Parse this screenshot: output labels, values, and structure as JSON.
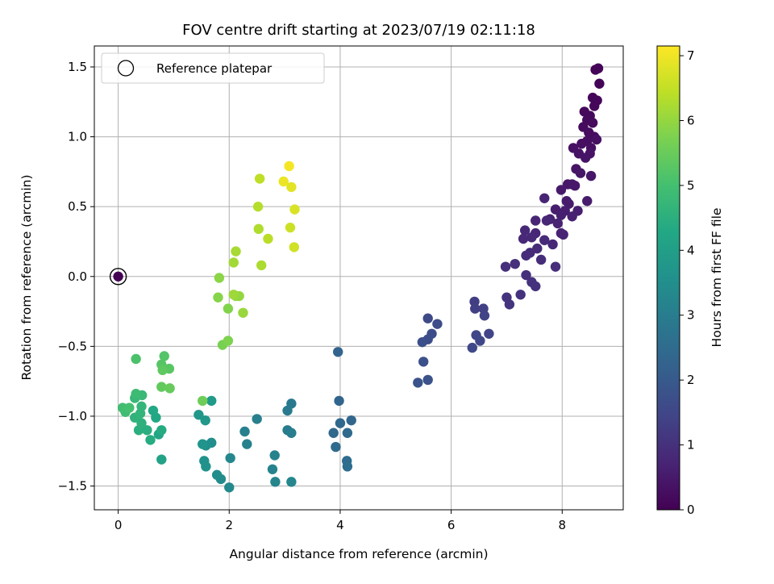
{
  "chart_data": {
    "type": "scatter",
    "title": "FOV centre drift starting at 2023/07/19 02:11:18",
    "xlabel": "Angular distance from reference (arcmin)",
    "ylabel": "Rotation from reference (arcmin)",
    "xlim": [
      -0.43,
      9.1
    ],
    "ylim": [
      -1.67,
      1.65
    ],
    "xticks": [
      0,
      2,
      4,
      6,
      8
    ],
    "xtick_labels": [
      "0",
      "2",
      "4",
      "6",
      "8"
    ],
    "yticks": [
      -1.5,
      -1.0,
      -0.5,
      0.0,
      0.5,
      1.0,
      1.5
    ],
    "ytick_labels": [
      "−1.5",
      "−1.0",
      "−0.5",
      "0.0",
      "0.5",
      "1.0",
      "1.5"
    ],
    "grid": true,
    "colormap": "viridis",
    "legend": {
      "placement": "upper-left",
      "entries": [
        {
          "label": "Reference platepar",
          "marker": "hollow-circle"
        }
      ]
    },
    "colorbar": {
      "label": "Hours from first FF file",
      "range": [
        0,
        7.15
      ],
      "ticks": [
        0,
        1,
        2,
        3,
        4,
        5,
        6,
        7
      ],
      "tick_labels": [
        "0",
        "1",
        "2",
        "3",
        "4",
        "5",
        "6",
        "7"
      ]
    },
    "reference_point": {
      "x": 0,
      "y": 0
    },
    "points": [
      [
        0,
        0,
        0
      ],
      [
        8.6,
        1.48,
        0.05
      ],
      [
        8.65,
        1.49,
        0.07
      ],
      [
        8.67,
        1.38,
        0.08
      ],
      [
        8.55,
        1.28,
        0.1
      ],
      [
        8.63,
        1.26,
        0.12
      ],
      [
        8.58,
        1.22,
        0.13
      ],
      [
        8.4,
        1.18,
        0.15
      ],
      [
        8.5,
        1.15,
        0.17
      ],
      [
        8.45,
        1.12,
        0.18
      ],
      [
        8.55,
        1.1,
        0.2
      ],
      [
        8.38,
        1.07,
        0.22
      ],
      [
        8.48,
        1.03,
        0.23
      ],
      [
        8.58,
        1.0,
        0.25
      ],
      [
        8.45,
        0.97,
        0.27
      ],
      [
        8.35,
        0.95,
        0.28
      ],
      [
        8.52,
        0.92,
        0.3
      ],
      [
        8.62,
        0.98,
        0.32
      ],
      [
        8.2,
        0.92,
        0.33
      ],
      [
        8.3,
        0.88,
        0.35
      ],
      [
        8.5,
        0.88,
        0.37
      ],
      [
        8.42,
        0.85,
        0.38
      ],
      [
        8.25,
        0.77,
        0.4
      ],
      [
        8.33,
        0.74,
        0.42
      ],
      [
        8.52,
        0.72,
        0.43
      ],
      [
        8.1,
        0.66,
        0.45
      ],
      [
        8.18,
        0.66,
        0.47
      ],
      [
        8.23,
        0.65,
        0.48
      ],
      [
        7.98,
        0.62,
        0.5
      ],
      [
        8.08,
        0.54,
        0.52
      ],
      [
        8.12,
        0.52,
        0.53
      ],
      [
        8.45,
        0.54,
        0.55
      ],
      [
        7.88,
        0.48,
        0.57
      ],
      [
        8.05,
        0.47,
        0.58
      ],
      [
        8.28,
        0.47,
        0.6
      ],
      [
        7.98,
        0.44,
        0.62
      ],
      [
        8.18,
        0.43,
        0.63
      ],
      [
        7.78,
        0.41,
        0.65
      ],
      [
        7.92,
        0.38,
        0.67
      ],
      [
        7.98,
        0.31,
        0.68
      ],
      [
        8.02,
        0.3,
        0.7
      ],
      [
        7.68,
        0.56,
        0.72
      ],
      [
        7.52,
        0.4,
        0.73
      ],
      [
        7.72,
        0.4,
        0.75
      ],
      [
        7.52,
        0.31,
        0.77
      ],
      [
        7.83,
        0.23,
        0.78
      ],
      [
        7.33,
        0.33,
        0.8
      ],
      [
        7.3,
        0.27,
        0.82
      ],
      [
        7.45,
        0.28,
        0.83
      ],
      [
        7.68,
        0.26,
        0.85
      ],
      [
        7.55,
        0.2,
        0.87
      ],
      [
        7.42,
        0.17,
        0.88
      ],
      [
        7.35,
        0.15,
        0.9
      ],
      [
        7.62,
        0.12,
        0.92
      ],
      [
        7.88,
        0.07,
        0.93
      ],
      [
        7.15,
        0.09,
        0.95
      ],
      [
        6.98,
        0.07,
        0.97
      ],
      [
        7.35,
        0.01,
        0.98
      ],
      [
        7.45,
        -0.04,
        1.0
      ],
      [
        7.52,
        -0.07,
        1.02
      ],
      [
        7.25,
        -0.13,
        1.03
      ],
      [
        7.0,
        -0.15,
        1.05
      ],
      [
        7.05,
        -0.2,
        1.07
      ],
      [
        6.42,
        -0.18,
        1.3
      ],
      [
        6.43,
        -0.23,
        1.33
      ],
      [
        6.58,
        -0.23,
        1.37
      ],
      [
        6.6,
        -0.28,
        1.4
      ],
      [
        6.68,
        -0.41,
        1.43
      ],
      [
        6.45,
        -0.42,
        1.47
      ],
      [
        6.52,
        -0.46,
        1.5
      ],
      [
        6.38,
        -0.51,
        1.53
      ],
      [
        5.58,
        -0.3,
        1.6
      ],
      [
        5.75,
        -0.34,
        1.63
      ],
      [
        5.65,
        -0.41,
        1.67
      ],
      [
        5.58,
        -0.45,
        1.7
      ],
      [
        5.48,
        -0.47,
        1.73
      ],
      [
        5.5,
        -0.61,
        1.77
      ],
      [
        5.58,
        -0.74,
        1.8
      ],
      [
        5.4,
        -0.76,
        1.83
      ],
      [
        3.96,
        -0.54,
        2.3
      ],
      [
        3.98,
        -0.89,
        2.33
      ],
      [
        4.2,
        -1.03,
        2.37
      ],
      [
        4.0,
        -1.05,
        2.4
      ],
      [
        3.88,
        -1.12,
        2.43
      ],
      [
        4.13,
        -1.12,
        2.47
      ],
      [
        3.92,
        -1.22,
        2.5
      ],
      [
        4.12,
        -1.32,
        2.53
      ],
      [
        4.13,
        -1.36,
        2.57
      ],
      [
        3.12,
        -0.91,
        2.9
      ],
      [
        3.05,
        -0.96,
        2.93
      ],
      [
        3.05,
        -1.1,
        2.97
      ],
      [
        3.12,
        -1.12,
        3.0
      ],
      [
        2.5,
        -1.02,
        3.05
      ],
      [
        2.28,
        -1.11,
        3.08
      ],
      [
        2.32,
        -1.2,
        3.12
      ],
      [
        2.82,
        -1.28,
        3.15
      ],
      [
        2.78,
        -1.38,
        3.18
      ],
      [
        2.83,
        -1.47,
        3.22
      ],
      [
        3.12,
        -1.47,
        3.25
      ],
      [
        2.02,
        -1.3,
        3.3
      ],
      [
        2.0,
        -1.51,
        3.35
      ],
      [
        1.85,
        -1.45,
        3.4
      ],
      [
        1.78,
        -1.42,
        3.45
      ],
      [
        1.68,
        -1.19,
        3.5
      ],
      [
        1.58,
        -1.21,
        3.55
      ],
      [
        1.55,
        -1.32,
        3.6
      ],
      [
        1.58,
        -1.36,
        3.65
      ],
      [
        1.52,
        -1.2,
        3.7
      ],
      [
        1.45,
        -0.99,
        3.75
      ],
      [
        1.57,
        -1.03,
        3.8
      ],
      [
        1.68,
        -0.89,
        3.85
      ],
      [
        0.78,
        -1.31,
        4.1
      ],
      [
        0.73,
        -1.13,
        4.2
      ],
      [
        0.68,
        -1.01,
        4.25
      ],
      [
        0.63,
        -0.96,
        4.3
      ],
      [
        0.78,
        -1.1,
        4.35
      ],
      [
        0.58,
        -1.17,
        4.4
      ],
      [
        0.52,
        -1.1,
        4.45
      ],
      [
        0.37,
        -1.1,
        4.5
      ],
      [
        0.42,
        -1.05,
        4.55
      ],
      [
        0.3,
        -1.01,
        4.6
      ],
      [
        0.4,
        -0.98,
        4.65
      ],
      [
        0.42,
        -0.93,
        4.7
      ],
      [
        0.3,
        -0.87,
        4.75
      ],
      [
        0.43,
        -0.85,
        4.8
      ],
      [
        0.32,
        -0.84,
        4.85
      ],
      [
        0.13,
        -0.97,
        4.9
      ],
      [
        0.08,
        -0.94,
        4.95
      ],
      [
        0.2,
        -0.94,
        5.0
      ],
      [
        0.32,
        -0.59,
        5.1
      ],
      [
        0.83,
        -0.57,
        5.2
      ],
      [
        0.78,
        -0.63,
        5.25
      ],
      [
        0.92,
        -0.66,
        5.3
      ],
      [
        0.8,
        -0.67,
        5.35
      ],
      [
        0.78,
        -0.79,
        5.4
      ],
      [
        0.93,
        -0.8,
        5.45
      ],
      [
        1.52,
        -0.89,
        5.55
      ],
      [
        1.88,
        -0.49,
        5.7
      ],
      [
        1.98,
        -0.46,
        5.75
      ],
      [
        1.98,
        -0.23,
        5.8
      ],
      [
        1.8,
        -0.15,
        5.85
      ],
      [
        1.82,
        -0.01,
        5.9
      ],
      [
        2.12,
        -0.14,
        5.95
      ],
      [
        2.18,
        -0.14,
        6.0
      ],
      [
        2.25,
        -0.26,
        6.05
      ],
      [
        2.08,
        -0.13,
        6.1
      ],
      [
        2.08,
        0.1,
        6.15
      ],
      [
        2.12,
        0.18,
        6.2
      ],
      [
        2.58,
        0.08,
        6.25
      ],
      [
        2.53,
        0.34,
        6.3
      ],
      [
        2.52,
        0.5,
        6.35
      ],
      [
        2.7,
        0.27,
        6.4
      ],
      [
        2.55,
        0.7,
        6.45
      ],
      [
        3.1,
        0.35,
        6.6
      ],
      [
        3.17,
        0.21,
        6.65
      ],
      [
        3.18,
        0.48,
        6.75
      ],
      [
        3.12,
        0.64,
        6.85
      ],
      [
        2.98,
        0.68,
        6.95
      ],
      [
        3.08,
        0.79,
        7.05
      ]
    ]
  }
}
